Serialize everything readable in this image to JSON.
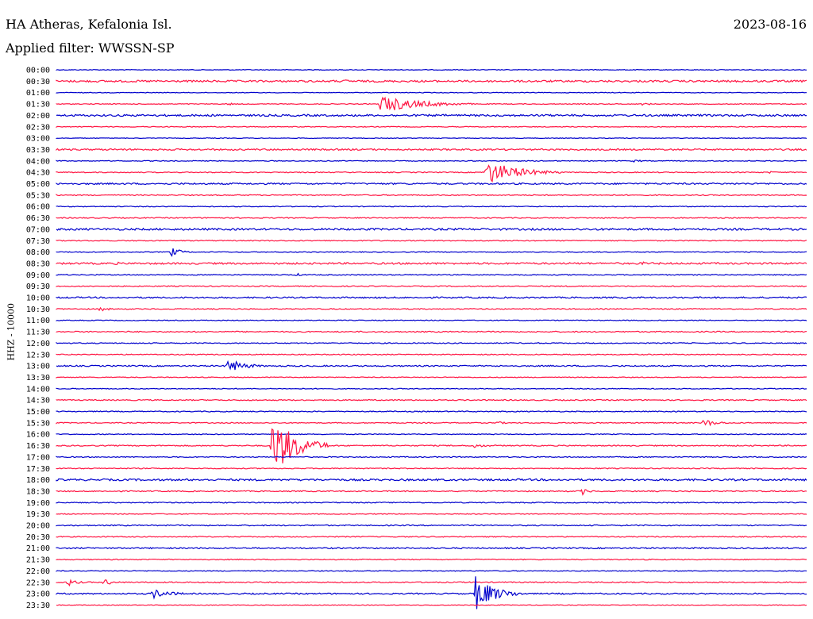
{
  "header": {
    "station": "HA Atheras, Kefalonia Isl.",
    "date": "2023-08-16",
    "filter": "Applied filter: WWSSN-SP",
    "channel_label": "HHZ - 10000"
  },
  "colors": {
    "line_a": "#0000cc",
    "line_b": "#ff1744"
  },
  "chart_data": {
    "type": "line",
    "title": "HA Atheras, Kefalonia Isl.",
    "ylabel": "HHZ - 10000",
    "rows": [
      "00:00",
      "00:30",
      "01:00",
      "01:30",
      "02:00",
      "02:30",
      "03:00",
      "03:30",
      "04:00",
      "04:30",
      "05:00",
      "05:30",
      "06:00",
      "06:30",
      "07:00",
      "07:30",
      "08:00",
      "08:30",
      "09:00",
      "09:30",
      "10:00",
      "10:30",
      "11:00",
      "11:30",
      "12:00",
      "12:30",
      "13:00",
      "13:30",
      "14:00",
      "14:30",
      "15:00",
      "15:30",
      "16:00",
      "16:30",
      "17:00",
      "17:30",
      "18:00",
      "18:30",
      "19:00",
      "19:30",
      "20:00",
      "20:30",
      "21:00",
      "21:30",
      "22:00",
      "22:30",
      "23:00",
      "23:30"
    ],
    "noise": [
      0.4,
      1.2,
      0.4,
      0.5,
      1.2,
      0.5,
      0.4,
      1.0,
      0.5,
      0.6,
      1.0,
      0.6,
      0.5,
      0.6,
      1.2,
      0.6,
      0.5,
      1.1,
      0.6,
      0.6,
      0.9,
      0.6,
      0.5,
      0.7,
      0.6,
      0.6,
      0.8,
      0.5,
      0.5,
      0.7,
      0.6,
      0.6,
      0.5,
      0.7,
      0.6,
      0.6,
      1.2,
      0.7,
      0.6,
      0.5,
      0.7,
      0.6,
      0.8,
      0.6,
      0.5,
      0.7,
      0.8,
      0.4
    ],
    "events": [
      {
        "row": 1,
        "frac": 0.385,
        "amp": 2.5,
        "dur": 0.008
      },
      {
        "row": 3,
        "frac": 0.23,
        "amp": 2.5,
        "dur": 0.004
      },
      {
        "row": 3,
        "frac": 0.432,
        "amp": 11,
        "dur": 0.05
      },
      {
        "row": 3,
        "frac": 0.78,
        "amp": 1.5,
        "dur": 0.02
      },
      {
        "row": 8,
        "frac": 0.77,
        "amp": 2,
        "dur": 0.01
      },
      {
        "row": 9,
        "frac": 0.573,
        "amp": 15,
        "dur": 0.04
      },
      {
        "row": 9,
        "frac": 0.95,
        "amp": 1.5,
        "dur": 0.01
      },
      {
        "row": 16,
        "frac": 0.153,
        "amp": 6,
        "dur": 0.012
      },
      {
        "row": 17,
        "frac": 0.08,
        "amp": 2,
        "dur": 0.01
      },
      {
        "row": 17,
        "frac": 0.78,
        "amp": 2,
        "dur": 0.03
      },
      {
        "row": 18,
        "frac": 0.32,
        "amp": 2,
        "dur": 0.01
      },
      {
        "row": 21,
        "frac": 0.058,
        "amp": 3,
        "dur": 0.012
      },
      {
        "row": 26,
        "frac": 0.228,
        "amp": 9,
        "dur": 0.022
      },
      {
        "row": 31,
        "frac": 0.585,
        "amp": 2,
        "dur": 0.015
      },
      {
        "row": 31,
        "frac": 0.862,
        "amp": 5,
        "dur": 0.018
      },
      {
        "row": 33,
        "frac": 0.288,
        "amp": 38,
        "dur": 0.03
      },
      {
        "row": 33,
        "frac": 0.555,
        "amp": 2,
        "dur": 0.03
      },
      {
        "row": 33,
        "frac": 0.556,
        "amp": 4,
        "dur": 0.005
      },
      {
        "row": 37,
        "frac": 0.7,
        "amp": 5,
        "dur": 0.008
      },
      {
        "row": 45,
        "frac": 0.015,
        "amp": 5,
        "dur": 0.012
      },
      {
        "row": 45,
        "frac": 0.064,
        "amp": 5,
        "dur": 0.01
      },
      {
        "row": 45,
        "frac": 0.216,
        "amp": 2,
        "dur": 0.01
      },
      {
        "row": 46,
        "frac": 0.128,
        "amp": 6,
        "dur": 0.025
      },
      {
        "row": 46,
        "frac": 0.558,
        "amp": 22,
        "dur": 0.025
      }
    ]
  }
}
